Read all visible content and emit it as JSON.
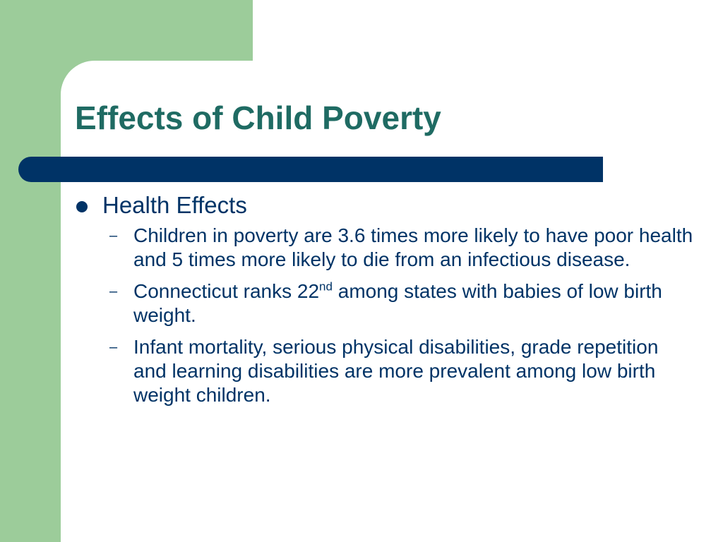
{
  "slide": {
    "title": "Effects of Child Poverty",
    "colors": {
      "green_block": "#9ccc9a",
      "title_text": "#1f6b63",
      "title_bar": "#003366",
      "body_text": "#003366"
    },
    "bullets": [
      {
        "text": "Health Effects",
        "sub_bullets": [
          {
            "dash": "–",
            "text": "Children in poverty are 3.6 times more likely to have poor health and 5 times more likely to die from an infectious disease."
          },
          {
            "dash": "–",
            "text_before": "Connecticut ranks 22",
            "superscript": "nd",
            "text_after": " among states with babies of low birth weight."
          },
          {
            "dash": "–",
            "text": "Infant mortality, serious physical disabilities, grade repetition and learning disabilities are more prevalent among low birth weight children."
          }
        ]
      }
    ]
  }
}
